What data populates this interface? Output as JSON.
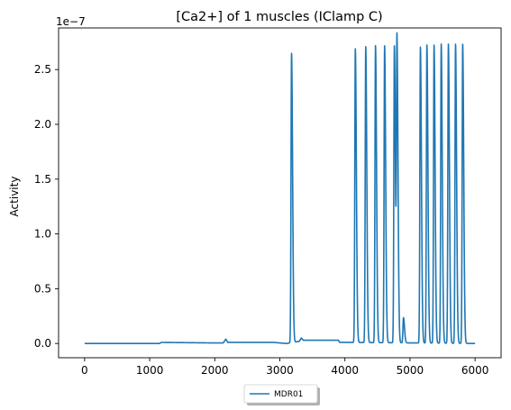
{
  "chart_data": {
    "type": "line",
    "title": "[Ca2+] of 1 muscles (IClamp C)",
    "xlabel": "",
    "ylabel": "Activity",
    "y_multiplier_label": "1e−7",
    "xlim": [
      -400,
      6400
    ],
    "ylim": [
      -0.13,
      2.88
    ],
    "xticks": [
      0,
      1000,
      2000,
      3000,
      4000,
      5000,
      6000
    ],
    "xtick_labels": [
      "0",
      "1000",
      "2000",
      "3000",
      "4000",
      "5000",
      "6000"
    ],
    "yticks": [
      0.0,
      0.5,
      1.0,
      1.5,
      2.0,
      2.5
    ],
    "ytick_labels": [
      "0.0",
      "0.5",
      "1.0",
      "1.5",
      "2.0",
      "2.5"
    ],
    "grid": false,
    "legend_position": "below-center",
    "series": [
      {
        "name": "MDR01",
        "color": "#1f77b4",
        "baseline": [
          [
            0,
            0.0
          ],
          [
            1150,
            0.0
          ],
          [
            1180,
            0.01
          ],
          [
            2000,
            0.005
          ],
          [
            2130,
            0.005
          ],
          [
            2170,
            0.04
          ],
          [
            2200,
            0.01
          ],
          [
            2900,
            0.01
          ],
          [
            3100,
            0.0
          ],
          [
            3300,
            0.02
          ],
          [
            3330,
            0.05
          ],
          [
            3360,
            0.03
          ],
          [
            3900,
            0.03
          ],
          [
            3920,
            0.01
          ],
          [
            4120,
            0.01
          ],
          [
            6000,
            0.0
          ]
        ],
        "peaks": [
          {
            "x": 3180,
            "y": 2.64
          },
          {
            "x": 4160,
            "y": 2.68
          },
          {
            "x": 4320,
            "y": 2.7
          },
          {
            "x": 4470,
            "y": 2.71
          },
          {
            "x": 4610,
            "y": 2.71
          },
          {
            "x": 4760,
            "y": 2.71
          },
          {
            "x": 4800,
            "y": 2.71
          },
          {
            "x": 4900,
            "y": 0.23
          },
          {
            "x": 5160,
            "y": 2.7
          },
          {
            "x": 5260,
            "y": 2.72
          },
          {
            "x": 5370,
            "y": 2.72
          },
          {
            "x": 5480,
            "y": 2.73
          },
          {
            "x": 5590,
            "y": 2.73
          },
          {
            "x": 5700,
            "y": 2.73
          },
          {
            "x": 5810,
            "y": 2.73
          }
        ]
      }
    ]
  }
}
